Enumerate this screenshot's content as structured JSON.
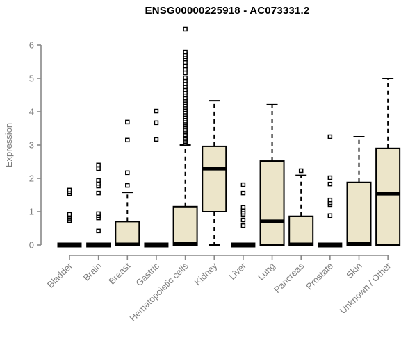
{
  "chart_data": {
    "type": "boxplot",
    "title": "ENSG00000225918 - AC073331.2",
    "ylabel": "Expression",
    "xlabel": "",
    "ylim": [
      0,
      6.6
    ],
    "yticks": [
      0,
      1,
      2,
      3,
      4,
      5,
      6
    ],
    "grid": false,
    "legend": "none",
    "colors": {
      "box_fill": "#ece5c9",
      "box_stroke": "#000000",
      "median": "#000000",
      "whisker": "#000000",
      "outlier_stroke": "#000000",
      "outlier_fill": "#ffffff",
      "axis": "#898989",
      "tick_label": "#7d7d7d",
      "title": "#000000",
      "background": "#ffffff"
    },
    "categories": [
      "Bladder",
      "Brain",
      "Breast",
      "Gastric",
      "Hematopoietic cells",
      "Kidney",
      "Liver",
      "Lung",
      "Pancreas",
      "Prostate",
      "Skin",
      "Unknown / Other"
    ],
    "series": [
      {
        "category": "Bladder",
        "q1": 0,
        "median": 0,
        "q3": 0,
        "whisker_low": 0,
        "whisker_high": 0,
        "outliers": [
          0.73,
          0.8,
          0.86,
          0.92,
          1.54,
          1.6,
          1.65
        ]
      },
      {
        "category": "Brain",
        "q1": 0,
        "median": 0,
        "q3": 0,
        "whisker_low": 0,
        "whisker_high": 0,
        "outliers": [
          0.42,
          0.81,
          0.88,
          0.94,
          1.56,
          1.77,
          1.85,
          1.94,
          2.29,
          2.4
        ]
      },
      {
        "category": "Breast",
        "q1": 0,
        "median": 0.02,
        "q3": 0.7,
        "whisker_low": 0,
        "whisker_high": 1.58,
        "outliers": [
          1.79,
          2.17,
          3.15,
          3.69
        ]
      },
      {
        "category": "Gastric",
        "q1": 0,
        "median": 0,
        "q3": 0,
        "whisker_low": 0,
        "whisker_high": 0,
        "outliers": [
          3.17,
          3.67,
          4.02
        ]
      },
      {
        "category": "Hematopoietic cells",
        "q1": 0,
        "median": 0.03,
        "q3": 1.15,
        "whisker_low": 0,
        "whisker_high": 3.0,
        "outliers": [
          3.05,
          3.1,
          3.14,
          3.18,
          3.22,
          3.27,
          3.31,
          3.36,
          3.4,
          3.45,
          3.5,
          3.55,
          3.6,
          3.66,
          3.72,
          3.78,
          3.85,
          3.92,
          3.99,
          4.06,
          4.13,
          4.2,
          4.27,
          4.34,
          4.41,
          4.5,
          4.58,
          4.66,
          4.75,
          4.84,
          4.93,
          5.02,
          5.17,
          5.27,
          5.38,
          5.48,
          5.58,
          5.65,
          5.72,
          5.79,
          6.48
        ]
      },
      {
        "category": "Kidney",
        "q1": 1.0,
        "median": 2.29,
        "q3": 2.96,
        "whisker_low": 0,
        "whisker_high": 4.33,
        "outliers": []
      },
      {
        "category": "Liver",
        "q1": 0,
        "median": 0,
        "q3": 0,
        "whisker_low": 0,
        "whisker_high": 0,
        "outliers": [
          0.58,
          0.75,
          0.92,
          0.98,
          1.05,
          1.13,
          1.56,
          1.81
        ]
      },
      {
        "category": "Lung",
        "q1": 0,
        "median": 0.71,
        "q3": 2.52,
        "whisker_low": 0,
        "whisker_high": 4.21,
        "outliers": []
      },
      {
        "category": "Pancreas",
        "q1": 0,
        "median": 0.02,
        "q3": 0.86,
        "whisker_low": 0,
        "whisker_high": 2.09,
        "outliers": [
          2.23
        ]
      },
      {
        "category": "Prostate",
        "q1": 0,
        "median": 0,
        "q3": 0,
        "whisker_low": 0,
        "whisker_high": 0,
        "outliers": [
          0.88,
          1.21,
          1.27,
          1.35,
          1.83,
          2.02,
          3.25
        ]
      },
      {
        "category": "Skin",
        "q1": 0,
        "median": 0.05,
        "q3": 1.88,
        "whisker_low": 0,
        "whisker_high": 3.25,
        "outliers": []
      },
      {
        "category": "Unknown / Other",
        "q1": 0,
        "median": 1.54,
        "q3": 2.9,
        "whisker_low": 0,
        "whisker_high": 5.0,
        "outliers": []
      }
    ]
  }
}
